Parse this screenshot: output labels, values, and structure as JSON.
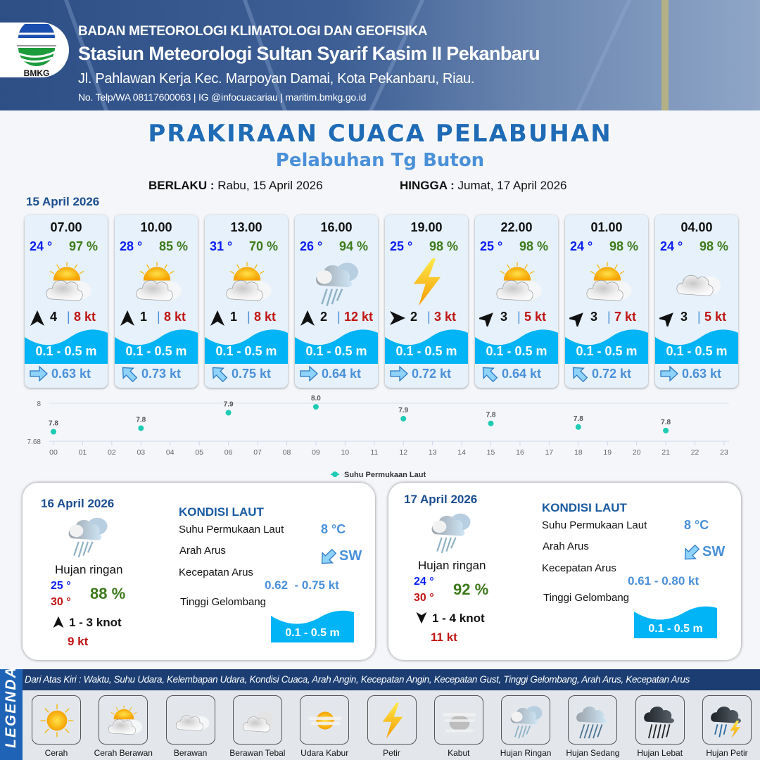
{
  "header": {
    "agency": "BADAN METEOROLOGI KLIMATOLOGI DAN GEOFISIKA",
    "station": "Stasiun Meteorologi Sultan Syarif Kasim II Pekanbaru",
    "address": "Jl. Pahlawan Kerja Kec. Marpoyan Damai, Kota Pekanbaru, Riau.",
    "contact": "No. Telp/WA 08117600063 | IG @infocuacariau | maritim.bmkg.go.id",
    "logo_text": "BMKG"
  },
  "title": "PRAKIRAAN CUACA PELABUHAN",
  "subtitle": "Pelabuhan Tg Buton",
  "validity": {
    "from_label": "BERLAKU :",
    "from_value": "Rabu, 15 April 2026",
    "to_label": "HINGGA :",
    "to_value": "Jumat, 17 April 2026"
  },
  "day1": {
    "date": "15 April 2026",
    "slots": [
      {
        "time": "07.00",
        "temp": "24 °",
        "hum": "97 %",
        "weather": "cerah-berawan",
        "wind_dir_deg": 0,
        "wind": "4",
        "gust": "8 kt",
        "wave": "0.1 - 0.5 m",
        "current_dir": "east",
        "current": "0.63 kt"
      },
      {
        "time": "10.00",
        "temp": "28 °",
        "hum": "85 %",
        "weather": "cerah-berawan",
        "wind_dir_deg": 0,
        "wind": "1",
        "gust": "8 kt",
        "wave": "0.1 - 0.5 m",
        "current_dir": "northwest",
        "current": "0.73 kt"
      },
      {
        "time": "13.00",
        "temp": "31 °",
        "hum": "70 %",
        "weather": "cerah-berawan",
        "wind_dir_deg": 0,
        "wind": "1",
        "gust": "8 kt",
        "wave": "0.1 - 0.5 m",
        "current_dir": "northwest",
        "current": "0.75 kt"
      },
      {
        "time": "16.00",
        "temp": "26 °",
        "hum": "94 %",
        "weather": "hujan-ringan",
        "wind_dir_deg": 0,
        "wind": "2",
        "gust": "12 kt",
        "wave": "0.1 - 0.5 m",
        "current_dir": "east",
        "current": "0.64 kt"
      },
      {
        "time": "19.00",
        "temp": "25 °",
        "hum": "98 %",
        "weather": "petir",
        "wind_dir_deg": 90,
        "wind": "2",
        "gust": "3 kt",
        "wave": "0.1 - 0.5 m",
        "current_dir": "east",
        "current": "0.72 kt"
      },
      {
        "time": "22.00",
        "temp": "25 °",
        "hum": "98 %",
        "weather": "cerah-berawan",
        "wind_dir_deg": 45,
        "wind": "3",
        "gust": "5 kt",
        "wave": "0.1 - 0.5 m",
        "current_dir": "northwest",
        "current": "0.64 kt"
      },
      {
        "time": "01.00",
        "temp": "24 °",
        "hum": "98 %",
        "weather": "cerah-berawan",
        "wind_dir_deg": 45,
        "wind": "3",
        "gust": "7 kt",
        "wave": "0.1 - 0.5 m",
        "current_dir": "northwest",
        "current": "0.72 kt"
      },
      {
        "time": "04.00",
        "temp": "24 °",
        "hum": "98 %",
        "weather": "berawan",
        "wind_dir_deg": 45,
        "wind": "3",
        "gust": "5 kt",
        "wave": "0.1 - 0.5 m",
        "current_dir": "east",
        "current": "0.63 kt"
      }
    ]
  },
  "chart_data": {
    "type": "scatter",
    "title": "",
    "xlabel": "",
    "ylabel": "",
    "x_ticks": [
      "00",
      "01",
      "02",
      "03",
      "04",
      "05",
      "06",
      "07",
      "08",
      "09",
      "10",
      "11",
      "12",
      "13",
      "14",
      "15",
      "16",
      "17",
      "18",
      "19",
      "20",
      "21",
      "22",
      "23"
    ],
    "y_ticks": [
      "7.68",
      "8"
    ],
    "ylim": [
      7.68,
      8.0
    ],
    "grid": "horizontal",
    "legend": "bottom",
    "color": "#1ecbb4",
    "series": [
      {
        "name": "Suhu Permukaan Laut",
        "x": [
          "00",
          "03",
          "06",
          "09",
          "12",
          "15",
          "18",
          "21"
        ],
        "y": [
          7.76,
          7.79,
          7.92,
          7.97,
          7.87,
          7.83,
          7.8,
          7.77
        ],
        "labels": [
          "7.8",
          "7.8",
          "7.9",
          "8.0",
          "7.9",
          "7.8",
          "7.8",
          "7.8"
        ]
      }
    ]
  },
  "panels": [
    {
      "date": "16 April 2026",
      "weather": "hujan-ringan",
      "condition": "Hujan ringan",
      "tmin": "25 °",
      "tmax": "30 °",
      "hum": "88 %",
      "wind_dir": "north",
      "wind": "1  - 3 knot",
      "gust": "9 kt",
      "sea_title": "KONDISI LAUT",
      "sst_label": "Suhu Permukaan Laut",
      "sst": "8 °C",
      "cur_dir_label": "Arah Arus",
      "cur_dir": "SW",
      "cur_spd_label": "Kecepatan Arus",
      "cur_spd": "0.62  - 0.75 kt",
      "wave_label": "Tinggi Gelombang",
      "wave": "0.1 - 0.5 m"
    },
    {
      "date": "17 April 2026",
      "weather": "hujan-ringan",
      "condition": "Hujan ringan",
      "tmin": "24 °",
      "tmax": "30 °",
      "hum": "92 %",
      "wind_dir": "south",
      "wind": "1  - 4 knot",
      "gust": "11 kt",
      "sea_title": "KONDISI LAUT",
      "sst_label": "Suhu Permukaan Laut",
      "sst": "8 °C",
      "cur_dir_label": "Arah Arus",
      "cur_dir": "SW",
      "cur_spd_label": "Kecepatan Arus",
      "cur_spd": "0.61 - 0.80 kt",
      "wave_label": "Tinggi Gelombang",
      "wave": "0.1 - 0.5 m"
    }
  ],
  "legend": {
    "title": "LEGENDA",
    "description": "Dari Atas Kiri : Waktu, Suhu Udara, Kelembapan Udara, Kondisi Cuaca, Arah Angin, Kecepatan Angin, Kecepatan Gust, Tinggi Gelombang, Arah Arus, Kecepatan Arus",
    "items": [
      {
        "label": "Cerah",
        "icon": "cerah"
      },
      {
        "label": "Cerah Berawan",
        "icon": "cerah-berawan"
      },
      {
        "label": "Berawan",
        "icon": "berawan"
      },
      {
        "label": "Berawan Tebal",
        "icon": "berawan-tebal"
      },
      {
        "label": "Udara Kabur",
        "icon": "udara-kabur"
      },
      {
        "label": "Petir",
        "icon": "petir"
      },
      {
        "label": "Kabut",
        "icon": "kabut"
      },
      {
        "label": "Hujan Ringan",
        "icon": "hujan-ringan"
      },
      {
        "label": "Hujan Sedang",
        "icon": "hujan-sedang"
      },
      {
        "label": "Hujan Lebat",
        "icon": "hujan-lebat"
      },
      {
        "label": "Hujan Petir",
        "icon": "hujan-petir"
      }
    ]
  },
  "colors": {
    "brand": "#1f6bb5",
    "wave": "#00b4f5",
    "temp": "#0a1ef0",
    "humidity": "#3d7a1a",
    "gust": "#c01515",
    "current": "#4a90d9",
    "legend_bar": "#1b3d72"
  }
}
